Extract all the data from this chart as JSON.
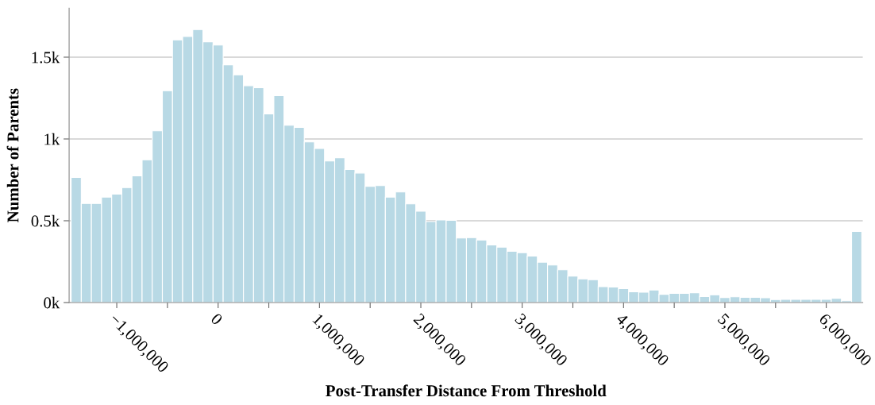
{
  "chart_data": {
    "type": "histogram",
    "xlabel": "Post-Transfer Distance From Threshold",
    "ylabel": "Number of Parents",
    "color": "#b8d9e5",
    "bins": [
      -1450000,
      -1350000,
      -1250000,
      -1150000,
      -1050000,
      -950000,
      -850000,
      -750000,
      -650000,
      -550000,
      -450000,
      -350000,
      -250000,
      -150000,
      -50000,
      50000,
      150000,
      250000,
      350000,
      450000,
      550000,
      650000,
      750000,
      850000,
      950000,
      1050000,
      1150000,
      1250000,
      1350000,
      1450000,
      1550000,
      1650000,
      1750000,
      1850000,
      1950000,
      2050000,
      2150000,
      2250000,
      2350000,
      2450000,
      2550000,
      2650000,
      2750000,
      2850000,
      2950000,
      3050000,
      3150000,
      3250000,
      3350000,
      3450000,
      3550000,
      3650000,
      3750000,
      3850000,
      3950000,
      4050000,
      4150000,
      4250000,
      4350000,
      4450000,
      4550000,
      4650000,
      4750000,
      4850000,
      4950000,
      5050000,
      5150000,
      5250000,
      5350000,
      5450000,
      5550000,
      5650000,
      5750000,
      5850000,
      5950000,
      6050000,
      6150000,
      6250000,
      6350000
    ],
    "values": [
      765,
      606,
      606,
      644,
      663,
      703,
      774,
      873,
      1050,
      1295,
      1606,
      1627,
      1669,
      1594,
      1574,
      1453,
      1392,
      1326,
      1313,
      1153,
      1265,
      1084,
      1071,
      982,
      942,
      865,
      885,
      813,
      792,
      710,
      715,
      644,
      676,
      603,
      558,
      495,
      505,
      502,
      394,
      397,
      382,
      352,
      339,
      313,
      305,
      284,
      247,
      229,
      200,
      161,
      145,
      140,
      97,
      95,
      85,
      66,
      63,
      77,
      50,
      56,
      56,
      60,
      37,
      47,
      31,
      35,
      32,
      32,
      29,
      18,
      19,
      19,
      19,
      19,
      19,
      26,
      11,
      435
    ],
    "xlim": [
      -1470000,
      6360000
    ],
    "xticks": [
      {
        "value": -1000000,
        "label": "−1,000,000"
      },
      {
        "value": -500000,
        "label": null
      },
      {
        "value": 0,
        "label": "0"
      },
      {
        "value": 500000,
        "label": null
      },
      {
        "value": 1000000,
        "label": "1,000,000"
      },
      {
        "value": 1500000,
        "label": null
      },
      {
        "value": 2000000,
        "label": "2,000,000"
      },
      {
        "value": 2500000,
        "label": null
      },
      {
        "value": 3000000,
        "label": "3,000,000"
      },
      {
        "value": 3500000,
        "label": null
      },
      {
        "value": 4000000,
        "label": "4,000,000"
      },
      {
        "value": 4500000,
        "label": null
      },
      {
        "value": 5000000,
        "label": "5,000,000"
      },
      {
        "value": 5500000,
        "label": null
      },
      {
        "value": 6000000,
        "label": "6,000,000"
      }
    ],
    "ylim": [
      0,
      1800
    ],
    "yticks": [
      {
        "value": 0,
        "label": "0k"
      },
      {
        "value": 500,
        "label": "0.5k"
      },
      {
        "value": 1000,
        "label": "1k"
      },
      {
        "value": 1500,
        "label": "1.5k"
      }
    ],
    "grid": "y",
    "legend": false
  }
}
